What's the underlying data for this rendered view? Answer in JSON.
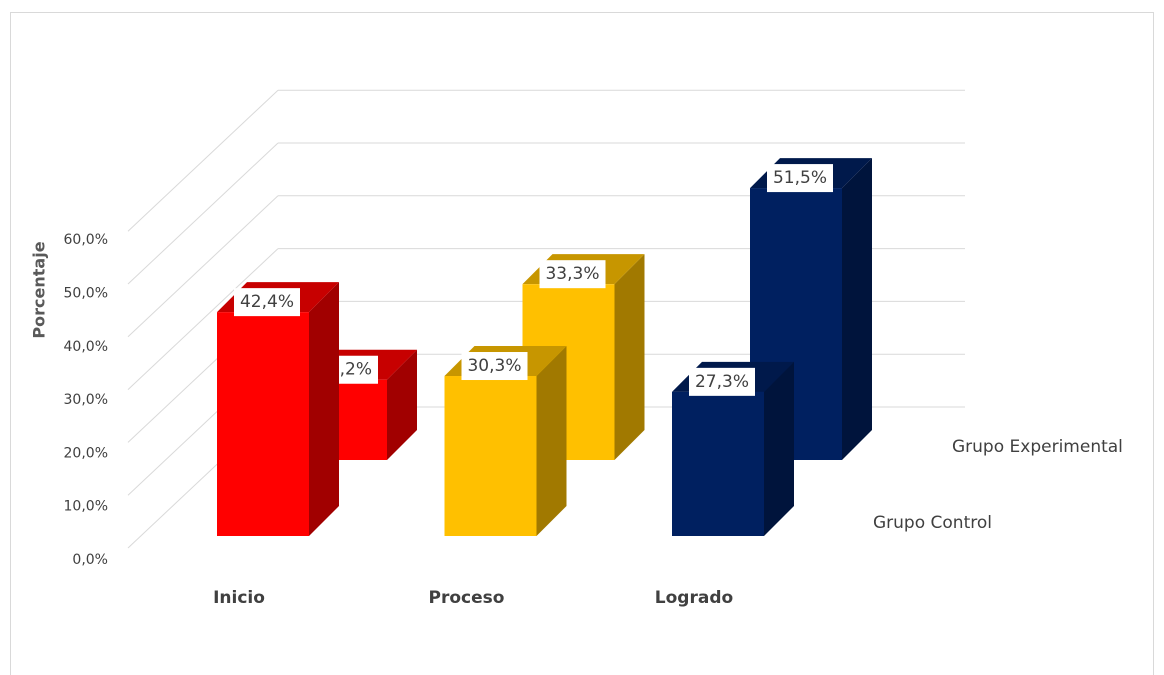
{
  "chart_data": {
    "type": "bar3d",
    "y_label": "Porcentaje",
    "categories": [
      "Inicio",
      "Proceso",
      "Logrado"
    ],
    "colors": [
      "#ff0000",
      "#ffc000",
      "#002060"
    ],
    "series": [
      {
        "name": "Grupo Control",
        "values": [
          42.4,
          30.3,
          27.3
        ],
        "value_labels": [
          "42,4%",
          "30,3%",
          "27,3%"
        ]
      },
      {
        "name": "Grupo Experimental",
        "values": [
          15.2,
          33.3,
          51.5
        ],
        "value_labels": [
          "15,2%",
          "33,3%",
          "51,5%"
        ]
      }
    ],
    "ylim": [
      0,
      60
    ],
    "yticks": [
      {
        "value": 0,
        "label": "0,0%"
      },
      {
        "value": 10,
        "label": "10,0%"
      },
      {
        "value": 20,
        "label": "20,0%"
      },
      {
        "value": 30,
        "label": "30,0%"
      },
      {
        "value": 40,
        "label": "40,0%"
      },
      {
        "value": 50,
        "label": "50,0%"
      },
      {
        "value": 60,
        "label": "60,0%"
      }
    ],
    "grid": true
  }
}
